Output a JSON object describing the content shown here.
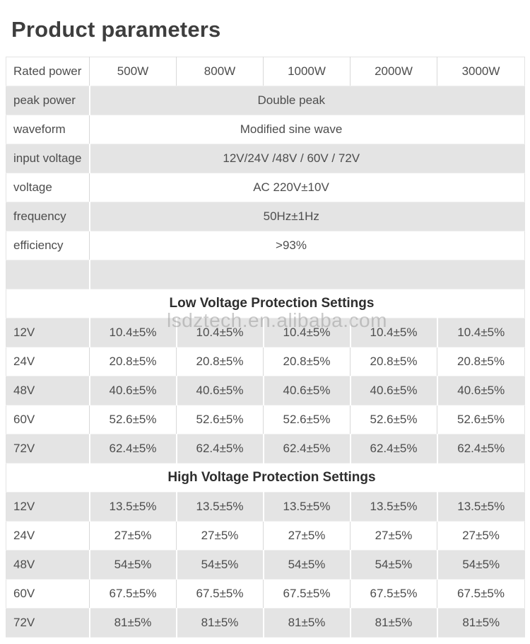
{
  "page": {
    "title": "Product parameters"
  },
  "watermark": {
    "text": "lsdztech.en.alibaba.com"
  },
  "colors": {
    "row_gray": "#e4e4e4",
    "row_white": "#ffffff",
    "border_gray": "#d8d8d8",
    "text": "#4d4d4d",
    "title_text": "#3e3e3e",
    "watermark_gray": "#8f8f8f"
  },
  "table": {
    "header_row": {
      "label": "Rated power",
      "columns": [
        "500W",
        "800W",
        "1000W",
        "2000W",
        "3000W"
      ]
    },
    "spec_rows": [
      {
        "label": "peak power",
        "value": "Double peak"
      },
      {
        "label": "waveform",
        "value": "Modified sine wave"
      },
      {
        "label": "input voltage",
        "value": "12V/24V /48V / 60V / 72V"
      },
      {
        "label": " voltage",
        "value": "AC 220V±10V"
      },
      {
        "label": "frequency",
        "value": "50Hz±1Hz"
      },
      {
        "label": "efficiency",
        "value": ">93%"
      },
      {
        "label": "",
        "value": ""
      }
    ],
    "sections": [
      {
        "title": "Low Voltage Protection Settings",
        "rows": [
          {
            "label": "12V",
            "values": [
              "10.4±5%",
              "10.4±5%",
              "10.4±5%",
              "10.4±5%",
              "10.4±5%"
            ]
          },
          {
            "label": "24V",
            "values": [
              "20.8±5%",
              "20.8±5%",
              "20.8±5%",
              "20.8±5%",
              "20.8±5%"
            ]
          },
          {
            "label": "48V",
            "values": [
              "40.6±5%",
              "40.6±5%",
              "40.6±5%",
              "40.6±5%",
              "40.6±5%"
            ]
          },
          {
            "label": "60V",
            "values": [
              "52.6±5%",
              "52.6±5%",
              "52.6±5%",
              "52.6±5%",
              "52.6±5%"
            ]
          },
          {
            "label": "72V",
            "values": [
              "62.4±5%",
              "62.4±5%",
              "62.4±5%",
              "62.4±5%",
              "62.4±5%"
            ]
          }
        ]
      },
      {
        "title": "High Voltage Protection Settings",
        "rows": [
          {
            "label": "12V",
            "values": [
              "13.5±5%",
              "13.5±5%",
              "13.5±5%",
              "13.5±5%",
              "13.5±5%"
            ]
          },
          {
            "label": "24V",
            "values": [
              "27±5%",
              "27±5%",
              "27±5%",
              "27±5%",
              "27±5%"
            ]
          },
          {
            "label": "48V",
            "values": [
              "54±5%",
              "54±5%",
              "54±5%",
              "54±5%",
              "54±5%"
            ]
          },
          {
            "label": "60V",
            "values": [
              "67.5±5%",
              "67.5±5%",
              "67.5±5%",
              "67.5±5%",
              "67.5±5%"
            ]
          },
          {
            "label": "72V",
            "values": [
              "81±5%",
              "81±5%",
              "81±5%",
              "81±5%",
              "81±5%"
            ]
          }
        ]
      }
    ]
  }
}
